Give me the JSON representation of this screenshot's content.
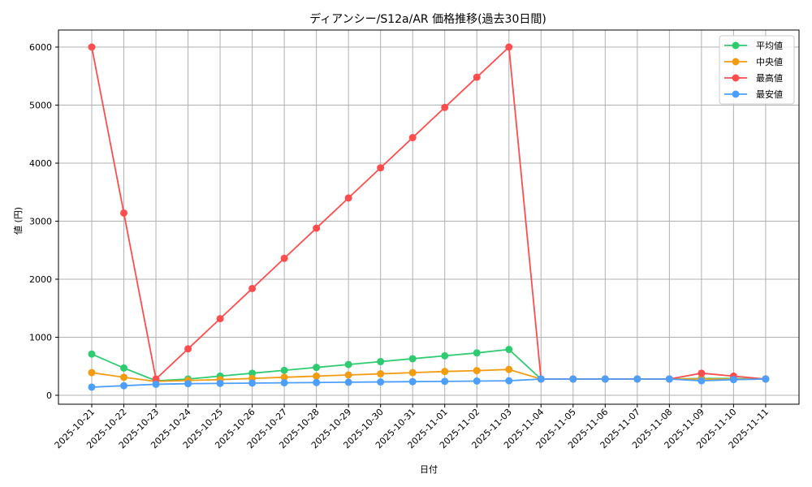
{
  "chart_data": {
    "type": "line",
    "title": "ディアンシー/S12a/AR 価格推移(過去30日間)",
    "xlabel": "日付",
    "ylabel": "値 (円)",
    "ylim": [
      -150,
      6300
    ],
    "yticks": [
      0,
      1000,
      2000,
      3000,
      4000,
      5000,
      6000
    ],
    "grid": true,
    "legend_position": "upper right",
    "x": [
      "2025-10-21",
      "2025-10-22",
      "2025-10-23",
      "2025-10-24",
      "2025-10-25",
      "2025-10-26",
      "2025-10-27",
      "2025-10-28",
      "2025-10-29",
      "2025-10-30",
      "2025-10-31",
      "2025-11-01",
      "2025-11-02",
      "2025-11-03",
      "2025-11-04",
      "2025-11-05",
      "2025-11-06",
      "2025-11-07",
      "2025-11-08",
      "2025-11-09",
      "2025-11-10",
      "2025-11-11"
    ],
    "series": [
      {
        "name": "平均値",
        "color": "#2ecc71",
        "values": [
          710,
          470,
          250,
          280,
          330,
          380,
          430,
          480,
          530,
          580,
          630,
          680,
          730,
          790,
          280,
          280,
          280,
          280,
          280,
          290,
          290,
          280
        ]
      },
      {
        "name": "中央値",
        "color": "#f39c12",
        "values": [
          390,
          310,
          240,
          255,
          270,
          290,
          310,
          330,
          350,
          370,
          390,
          410,
          425,
          445,
          280,
          280,
          280,
          280,
          280,
          280,
          280,
          280
        ]
      },
      {
        "name": "最高値",
        "color": "#ff4d4d",
        "values": [
          6000,
          3140,
          280,
          800,
          1320,
          1840,
          2360,
          2880,
          3400,
          3920,
          4440,
          4960,
          5480,
          6000,
          280,
          280,
          280,
          280,
          280,
          380,
          330,
          280
        ]
      },
      {
        "name": "最安値",
        "color": "#4d9fff",
        "values": [
          140,
          165,
          190,
          200,
          205,
          210,
          215,
          220,
          225,
          230,
          235,
          240,
          245,
          250,
          280,
          280,
          280,
          280,
          280,
          250,
          270,
          280
        ]
      }
    ]
  }
}
